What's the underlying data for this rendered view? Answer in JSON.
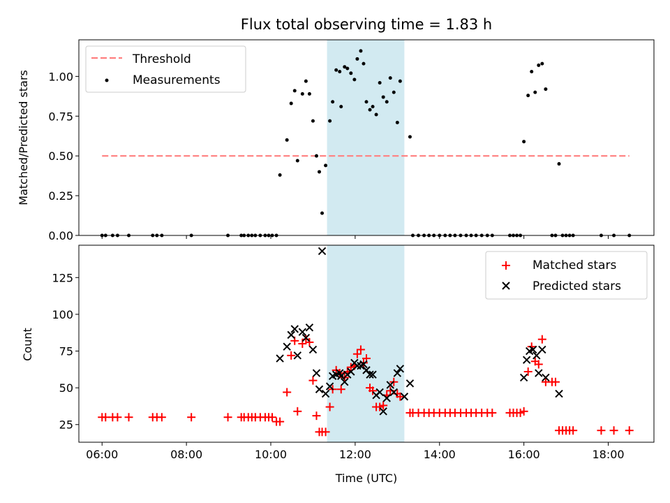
{
  "chart_data": [
    {
      "type": "scatter",
      "title": "Flux total observing time = 1.83 h",
      "ylabel": "Matched/Predicted stars",
      "xlabel": "",
      "xlim": [
        "05:27",
        "19:05"
      ],
      "ylim": [
        0,
        1.23
      ],
      "x_ticks": [
        "06:00",
        "08:00",
        "10:00",
        "12:00",
        "14:00",
        "16:00",
        "18:00"
      ],
      "y_ticks": [
        "0.00",
        "0.25",
        "0.50",
        "0.75",
        "1.00"
      ],
      "grid": false,
      "legend": "top-left",
      "shaded_interval": {
        "x": [
          "11:20",
          "13:10"
        ],
        "color": "#add8e6"
      },
      "series": [
        {
          "name": "Threshold",
          "style": "dashed-line",
          "color": "#ff7f7f",
          "x": [
            "06:00",
            "18:30"
          ],
          "y": [
            0.5,
            0.5
          ]
        },
        {
          "name": "Measurements",
          "style": "dot",
          "color": "#000000",
          "points": [
            [
              "06:00",
              0
            ],
            [
              "06:05",
              0
            ],
            [
              "06:15",
              0
            ],
            [
              "06:22",
              0
            ],
            [
              "06:38",
              0
            ],
            [
              "07:12",
              0
            ],
            [
              "07:18",
              0
            ],
            [
              "07:25",
              0
            ],
            [
              "08:07",
              0
            ],
            [
              "08:59",
              0
            ],
            [
              "09:18",
              0
            ],
            [
              "09:22",
              0
            ],
            [
              "09:28",
              0
            ],
            [
              "09:33",
              0
            ],
            [
              "09:38",
              0
            ],
            [
              "09:45",
              0
            ],
            [
              "09:52",
              0
            ],
            [
              "09:57",
              0
            ],
            [
              "10:02",
              0
            ],
            [
              "10:08",
              0
            ],
            [
              "10:13",
              0.38
            ],
            [
              "10:23",
              0.6
            ],
            [
              "10:29",
              0.83
            ],
            [
              "10:34",
              0.91
            ],
            [
              "10:38",
              0.47
            ],
            [
              "10:45",
              0.89
            ],
            [
              "10:50",
              0.97
            ],
            [
              "10:55",
              0.89
            ],
            [
              "11:00",
              0.72
            ],
            [
              "11:05",
              0.5
            ],
            [
              "11:09",
              0.4
            ],
            [
              "11:13",
              0.14
            ],
            [
              "11:18",
              0.44
            ],
            [
              "11:24",
              0.72
            ],
            [
              "11:28",
              0.84
            ],
            [
              "11:33",
              1.04
            ],
            [
              "11:38",
              1.03
            ],
            [
              "11:40",
              0.81
            ],
            [
              "11:45",
              1.06
            ],
            [
              "11:49",
              1.05
            ],
            [
              "11:54",
              1.02
            ],
            [
              "11:59",
              0.98
            ],
            [
              "12:03",
              1.11
            ],
            [
              "12:08",
              1.16
            ],
            [
              "12:12",
              1.08
            ],
            [
              "12:16",
              0.84
            ],
            [
              "12:21",
              0.79
            ],
            [
              "12:25",
              0.81
            ],
            [
              "12:30",
              0.76
            ],
            [
              "12:35",
              0.96
            ],
            [
              "12:40",
              0.87
            ],
            [
              "12:45",
              0.84
            ],
            [
              "12:50",
              0.99
            ],
            [
              "12:55",
              0.9
            ],
            [
              "13:00",
              0.71
            ],
            [
              "13:04",
              0.97
            ],
            [
              "13:18",
              0.62
            ],
            [
              "13:22",
              0
            ],
            [
              "13:30",
              0
            ],
            [
              "13:38",
              0
            ],
            [
              "13:45",
              0
            ],
            [
              "13:52",
              0
            ],
            [
              "14:00",
              0
            ],
            [
              "14:08",
              0
            ],
            [
              "14:15",
              0
            ],
            [
              "14:22",
              0
            ],
            [
              "14:30",
              0
            ],
            [
              "14:38",
              0
            ],
            [
              "14:45",
              0
            ],
            [
              "14:52",
              0
            ],
            [
              "15:00",
              0
            ],
            [
              "15:08",
              0
            ],
            [
              "15:15",
              0
            ],
            [
              "15:40",
              0
            ],
            [
              "15:45",
              0
            ],
            [
              "15:50",
              0
            ],
            [
              "15:55",
              0
            ],
            [
              "16:00",
              0.59
            ],
            [
              "16:06",
              0.88
            ],
            [
              "16:11",
              1.03
            ],
            [
              "16:16",
              0.9
            ],
            [
              "16:21",
              1.07
            ],
            [
              "16:26",
              1.08
            ],
            [
              "16:31",
              0.92
            ],
            [
              "16:40",
              0
            ],
            [
              "16:45",
              0
            ],
            [
              "16:50",
              0.45
            ],
            [
              "16:55",
              0
            ],
            [
              "17:00",
              0
            ],
            [
              "17:05",
              0
            ],
            [
              "17:10",
              0
            ],
            [
              "17:50",
              0
            ],
            [
              "18:08",
              0
            ],
            [
              "18:30",
              0
            ]
          ]
        }
      ]
    },
    {
      "type": "scatter",
      "title": "",
      "ylabel": "Count",
      "xlabel": "Time (UTC)",
      "xlim": [
        "05:27",
        "19:05"
      ],
      "ylim": [
        13,
        147
      ],
      "x_ticks": [
        "06:00",
        "08:00",
        "10:00",
        "12:00",
        "14:00",
        "16:00",
        "18:00"
      ],
      "y_ticks": [
        "25",
        "50",
        "75",
        "100",
        "125"
      ],
      "grid": false,
      "legend": "top-right",
      "shaded_interval": {
        "x": [
          "11:20",
          "13:10"
        ],
        "color": "#add8e6"
      },
      "series": [
        {
          "name": "Matched stars",
          "marker": "plus",
          "color": "#ff0000",
          "points": [
            [
              "06:00",
              30
            ],
            [
              "06:05",
              30
            ],
            [
              "06:15",
              30
            ],
            [
              "06:22",
              30
            ],
            [
              "06:38",
              30
            ],
            [
              "07:12",
              30
            ],
            [
              "07:18",
              30
            ],
            [
              "07:25",
              30
            ],
            [
              "08:07",
              30
            ],
            [
              "08:59",
              30
            ],
            [
              "09:18",
              30
            ],
            [
              "09:22",
              30
            ],
            [
              "09:28",
              30
            ],
            [
              "09:33",
              30
            ],
            [
              "09:38",
              30
            ],
            [
              "09:45",
              30
            ],
            [
              "09:52",
              30
            ],
            [
              "09:57",
              30
            ],
            [
              "10:02",
              30
            ],
            [
              "10:08",
              27
            ],
            [
              "10:13",
              27
            ],
            [
              "10:23",
              47
            ],
            [
              "10:29",
              72
            ],
            [
              "10:34",
              82
            ],
            [
              "10:38",
              34
            ],
            [
              "10:45",
              80
            ],
            [
              "10:50",
              83
            ],
            [
              "10:55",
              81
            ],
            [
              "11:00",
              55
            ],
            [
              "11:05",
              31
            ],
            [
              "11:09",
              20
            ],
            [
              "11:13",
              20
            ],
            [
              "11:18",
              20
            ],
            [
              "11:24",
              37
            ],
            [
              "11:28",
              49
            ],
            [
              "11:33",
              62
            ],
            [
              "11:38",
              60
            ],
            [
              "11:40",
              49
            ],
            [
              "11:45",
              57
            ],
            [
              "11:49",
              61
            ],
            [
              "11:54",
              64
            ],
            [
              "11:59",
              65
            ],
            [
              "12:03",
              73
            ],
            [
              "12:08",
              76
            ],
            [
              "12:12",
              67
            ],
            [
              "12:16",
              70
            ],
            [
              "12:21",
              50
            ],
            [
              "12:25",
              48
            ],
            [
              "12:30",
              37
            ],
            [
              "12:35",
              37
            ],
            [
              "12:40",
              38
            ],
            [
              "12:45",
              45
            ],
            [
              "12:50",
              48
            ],
            [
              "12:55",
              54
            ],
            [
              "13:00",
              46
            ],
            [
              "13:04",
              44
            ],
            [
              "13:18",
              33
            ],
            [
              "13:22",
              33
            ],
            [
              "13:30",
              33
            ],
            [
              "13:38",
              33
            ],
            [
              "13:45",
              33
            ],
            [
              "13:52",
              33
            ],
            [
              "14:00",
              33
            ],
            [
              "14:08",
              33
            ],
            [
              "14:15",
              33
            ],
            [
              "14:22",
              33
            ],
            [
              "14:30",
              33
            ],
            [
              "14:38",
              33
            ],
            [
              "14:45",
              33
            ],
            [
              "14:52",
              33
            ],
            [
              "15:00",
              33
            ],
            [
              "15:08",
              33
            ],
            [
              "15:15",
              33
            ],
            [
              "15:40",
              33
            ],
            [
              "15:45",
              33
            ],
            [
              "15:50",
              33
            ],
            [
              "15:55",
              33
            ],
            [
              "16:00",
              34
            ],
            [
              "16:06",
              61
            ],
            [
              "16:11",
              78
            ],
            [
              "16:16",
              68
            ],
            [
              "16:21",
              66
            ],
            [
              "16:26",
              83
            ],
            [
              "16:31",
              54
            ],
            [
              "16:40",
              54
            ],
            [
              "16:45",
              54
            ],
            [
              "16:50",
              21
            ],
            [
              "16:55",
              21
            ],
            [
              "17:00",
              21
            ],
            [
              "17:05",
              21
            ],
            [
              "17:10",
              21
            ],
            [
              "17:50",
              21
            ],
            [
              "18:08",
              21
            ],
            [
              "18:30",
              21
            ]
          ]
        },
        {
          "name": "Predicted stars",
          "marker": "x",
          "color": "#000000",
          "points": [
            [
              "10:13",
              70
            ],
            [
              "10:23",
              78
            ],
            [
              "10:29",
              86
            ],
            [
              "10:34",
              90
            ],
            [
              "10:38",
              72
            ],
            [
              "10:45",
              88
            ],
            [
              "10:50",
              84
            ],
            [
              "10:55",
              91
            ],
            [
              "11:00",
              76
            ],
            [
              "11:05",
              60
            ],
            [
              "11:09",
              49
            ],
            [
              "11:13",
              143
            ],
            [
              "11:18",
              46
            ],
            [
              "11:24",
              51
            ],
            [
              "11:28",
              58
            ],
            [
              "11:33",
              59
            ],
            [
              "11:38",
              60
            ],
            [
              "11:40",
              58
            ],
            [
              "11:45",
              54
            ],
            [
              "11:49",
              59
            ],
            [
              "11:54",
              61
            ],
            [
              "11:59",
              67
            ],
            [
              "12:03",
              65
            ],
            [
              "12:08",
              65
            ],
            [
              "12:12",
              66
            ],
            [
              "12:16",
              62
            ],
            [
              "12:21",
              59
            ],
            [
              "12:25",
              59
            ],
            [
              "12:30",
              45
            ],
            [
              "12:35",
              47
            ],
            [
              "12:40",
              34
            ],
            [
              "12:45",
              43
            ],
            [
              "12:50",
              52
            ],
            [
              "12:55",
              47
            ],
            [
              "13:00",
              60
            ],
            [
              "13:04",
              63
            ],
            [
              "13:10",
              44
            ],
            [
              "13:18",
              53
            ],
            [
              "16:00",
              57
            ],
            [
              "16:04",
              69
            ],
            [
              "16:08",
              75
            ],
            [
              "16:13",
              76
            ],
            [
              "16:18",
              72
            ],
            [
              "16:21",
              60
            ],
            [
              "16:26",
              76
            ],
            [
              "16:31",
              57
            ],
            [
              "16:50",
              46
            ]
          ]
        }
      ]
    }
  ]
}
